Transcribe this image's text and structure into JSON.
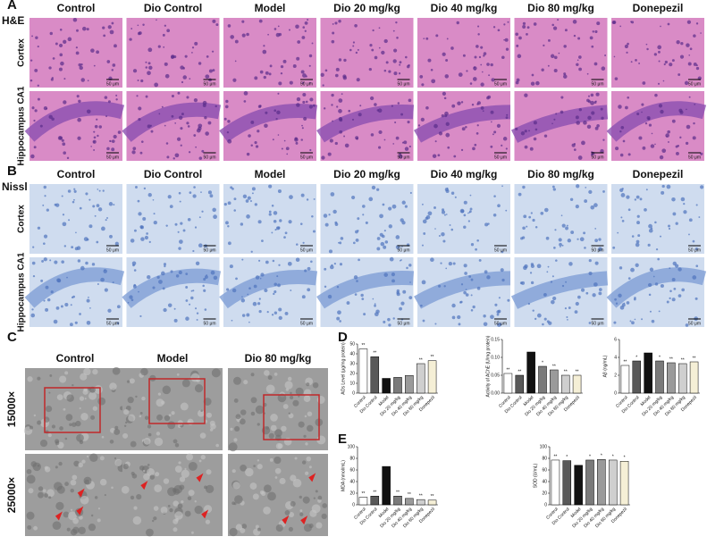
{
  "panels": {
    "A": {
      "label": "A",
      "stain": "H&E",
      "columns": [
        "Control",
        "Dio Control",
        "Model",
        "Dio 20 mg/kg",
        "Dio 40 mg/kg",
        "Dio 80 mg/kg",
        "Donepezil"
      ],
      "rows": [
        "Cortex",
        "Hippocampus CA1"
      ],
      "scale_bar": "50 μm"
    },
    "B": {
      "label": "B",
      "stain": "Nissl",
      "columns": [
        "Control",
        "Dio Control",
        "Model",
        "Dio 20 mg/kg",
        "Dio 40 mg/kg",
        "Dio 80 mg/kg",
        "Donepezil"
      ],
      "rows": [
        "Cortex",
        "Hippocampus CA1"
      ],
      "scale_bar": "50 μm"
    },
    "C": {
      "label": "C",
      "columns": [
        "Control",
        "Model",
        "Dio 80 mg/kg"
      ],
      "rows": [
        "15000×",
        "25000×"
      ]
    },
    "D": {
      "label": "D"
    },
    "E": {
      "label": "E"
    }
  },
  "chart_data": [
    {
      "type": "bar",
      "ylabel": "AOs Level (μg/mg protein)",
      "categories": [
        "Control",
        "Dio Control",
        "Model",
        "Dio 20 mg/kg",
        "Dio 40 mg/kg",
        "Dio 80 mg/kg",
        "Donepezil"
      ],
      "values": [
        45,
        37,
        15,
        16,
        18,
        30,
        33
      ],
      "colors": [
        "#ffffff",
        "#595959",
        "#111111",
        "#7a7a7a",
        "#9a9a9a",
        "#cfcfcf",
        "#f5efd6"
      ],
      "significance": [
        "**",
        "**",
        null,
        null,
        null,
        "**",
        "**"
      ],
      "ylim": [
        0,
        50
      ],
      "yticks": [
        0,
        10,
        20,
        30,
        40,
        50
      ]
    },
    {
      "type": "bar",
      "ylabel": "Activity of AChE (U/mg protein)",
      "categories": [
        "Control",
        "Dio Control",
        "Model",
        "Dio 20 mg/kg",
        "Dio 40 mg/kg",
        "Dio 80 mg/kg",
        "Donepezil"
      ],
      "values": [
        0.055,
        0.05,
        0.115,
        0.075,
        0.065,
        0.05,
        0.05
      ],
      "colors": [
        "#ffffff",
        "#595959",
        "#111111",
        "#7a7a7a",
        "#9a9a9a",
        "#cfcfcf",
        "#f5efd6"
      ],
      "significance": [
        "**",
        "**",
        null,
        "*",
        "**",
        "**",
        "**"
      ],
      "ylim": [
        0,
        0.15
      ],
      "yticks": [
        {
          "value": 0,
          "label": "0.00"
        },
        0.05,
        {
          "value": 0.1,
          "label": "0.10"
        },
        0.15
      ]
    },
    {
      "type": "bar",
      "ylabel": "Aβ (ng/mL)",
      "categories": [
        "Control",
        "Dio Control",
        "Model",
        "Dio 20 mg/kg",
        "Dio 40 mg/kg",
        "Dio 80 mg/kg",
        "Donepezil"
      ],
      "values": [
        3.1,
        3.6,
        4.5,
        3.6,
        3.4,
        3.3,
        3.5
      ],
      "colors": [
        "#ffffff",
        "#595959",
        "#111111",
        "#7a7a7a",
        "#9a9a9a",
        "#cfcfcf",
        "#f5efd6"
      ],
      "significance": [
        "**",
        "*",
        null,
        "*",
        "**",
        "**",
        "**"
      ],
      "ylim": [
        0,
        6
      ],
      "yticks": [
        0,
        2,
        4,
        6
      ]
    },
    {
      "type": "bar",
      "ylabel": "MDA (nmol/mL)",
      "categories": [
        "Control",
        "Dio Control",
        "Model",
        "Dio 20 mg/kg",
        "Dio 40 mg/kg",
        "Dio 80 mg/kg",
        "Donepezil"
      ],
      "values": [
        13,
        15,
        66,
        15,
        11,
        9,
        8
      ],
      "colors": [
        "#ffffff",
        "#595959",
        "#111111",
        "#7a7a7a",
        "#9a9a9a",
        "#cfcfcf",
        "#f5efd6"
      ],
      "significance": [
        "**",
        "**",
        null,
        "**",
        "**",
        "**",
        "**"
      ],
      "ylim": [
        0,
        100
      ],
      "yticks": [
        0,
        20,
        40,
        60,
        80,
        100
      ]
    },
    {
      "type": "bar",
      "ylabel": "SOD (U/mL)",
      "categories": [
        "Control",
        "Dio Control",
        "Model",
        "Dio 20 mg/kg",
        "Dio 40 mg/kg",
        "Dio 80 mg/kg",
        "Donepezil"
      ],
      "values": [
        77,
        76,
        68,
        77,
        78,
        77,
        75
      ],
      "colors": [
        "#ffffff",
        "#595959",
        "#111111",
        "#7a7a7a",
        "#9a9a9a",
        "#cfcfcf",
        "#f5efd6"
      ],
      "significance": [
        "**",
        "*",
        null,
        "*",
        "*",
        "*",
        "*"
      ],
      "ylim": [
        0,
        100
      ],
      "yticks": [
        0,
        20,
        40,
        60,
        80,
        100
      ]
    }
  ]
}
